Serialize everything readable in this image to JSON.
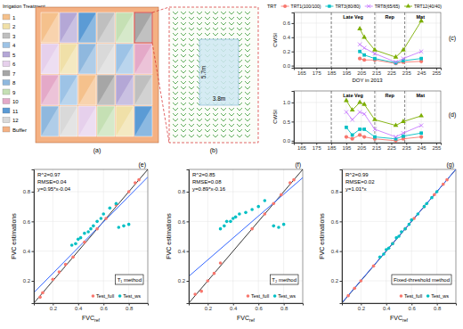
{
  "field_layout": {
    "label": "(a)",
    "legend_title": "Irrigation Treatment",
    "treatments": [
      {
        "name": "1",
        "color": "#f5c18c"
      },
      {
        "name": "2",
        "color": "#f0e0a8"
      },
      {
        "name": "3",
        "color": "#bfbfbf"
      },
      {
        "name": "4",
        "color": "#9dc3e6"
      },
      {
        "name": "5",
        "color": "#b4a7d6"
      },
      {
        "name": "6",
        "color": "#e6d0ec"
      },
      {
        "name": "7",
        "color": "#a6a6a6"
      },
      {
        "name": "8",
        "color": "#8fb8de"
      },
      {
        "name": "9",
        "color": "#c5e0b4"
      },
      {
        "name": "10",
        "color": "#e4a9c8"
      },
      {
        "name": "11",
        "color": "#5b9bd5"
      },
      {
        "name": "12",
        "color": "#d9d9d9"
      },
      {
        "name": "Buffer",
        "color": "#f4b183"
      }
    ],
    "plots": [
      [
        0,
        4,
        10,
        2,
        8,
        6
      ],
      [
        5,
        1,
        7,
        11,
        3,
        9
      ],
      [
        9,
        3,
        0,
        6,
        4,
        2
      ],
      [
        7,
        11,
        5,
        8,
        1,
        10
      ]
    ]
  },
  "plot_detail": {
    "label": "(b)",
    "length": "5.7m",
    "width": "3.8m"
  },
  "chart_data": [
    {
      "type": "line",
      "label": "(c)",
      "x_label": "DOY in 2013",
      "y_label": "CWSI",
      "legend": "top",
      "legend_title": "TRT",
      "grid": true,
      "x": [
        204,
        207,
        214,
        228,
        233,
        245
      ],
      "series": [
        {
          "name": "TRT1(100/100)",
          "color": "#F8766D",
          "marker": "circle",
          "values": [
            0.1,
            0.08,
            0.08,
            0.03,
            0.05,
            0.06
          ]
        },
        {
          "name": "TRT3(80/80)",
          "color": "#00BFC4",
          "marker": "square",
          "values": [
            0.2,
            0.15,
            0.1,
            0.04,
            0.07,
            0.1
          ]
        },
        {
          "name": "TRT8(65/65)",
          "color": "#C77CFF",
          "marker": "x",
          "values": [
            0.3,
            0.25,
            0.17,
            0.05,
            0.1,
            0.2
          ]
        },
        {
          "name": "TRT12(40/40)",
          "color": "#7CAE00",
          "marker": "triangle",
          "values": [
            0.52,
            0.4,
            0.22,
            0.12,
            0.22,
            0.63
          ]
        }
      ],
      "phases": [
        {
          "label": "Late Veg",
          "start": 185,
          "end": 214
        },
        {
          "label": "Rep",
          "start": 214,
          "end": 234
        },
        {
          "label": "Mat",
          "start": 234,
          "end": 255
        }
      ],
      "xlim": [
        160,
        258
      ],
      "xticks": [
        165,
        175,
        185,
        195,
        205,
        215,
        225,
        235,
        245,
        255
      ],
      "ylim": [
        -0.03,
        0.75
      ],
      "yticks": [
        {
          "value": 0,
          "label": "0.0"
        },
        0.2,
        0.4,
        0.6
      ]
    },
    {
      "type": "line",
      "label": "(d)",
      "y_label": "CWSI",
      "grid": true,
      "x": [
        195,
        199,
        204,
        207,
        214,
        228,
        233,
        245
      ],
      "series": [
        {
          "color": "#F8766D",
          "marker": "circle",
          "values": [
            0.1,
            0.05,
            0.15,
            0.1,
            0.05,
            0.0,
            0.05,
            0.1
          ]
        },
        {
          "color": "#00BFC4",
          "marker": "square",
          "values": [
            0.35,
            0.15,
            0.3,
            0.3,
            0.1,
            0.05,
            0.12,
            0.2
          ]
        },
        {
          "color": "#C77CFF",
          "marker": "x",
          "values": [
            0.75,
            0.55,
            0.75,
            0.7,
            0.3,
            0.1,
            0.2,
            0.4
          ]
        },
        {
          "color": "#7CAE00",
          "marker": "triangle",
          "values": [
            1.05,
            0.8,
            1.0,
            0.95,
            0.55,
            0.4,
            0.5,
            0.65
          ]
        }
      ],
      "phases": [
        {
          "label": "Late Veg",
          "start": 185,
          "end": 214
        },
        {
          "label": "Rep",
          "start": 214,
          "end": 234
        },
        {
          "label": "Mat",
          "start": 234,
          "end": 255
        }
      ],
      "xlim": [
        160,
        258
      ],
      "xticks": [
        165,
        175,
        185,
        195,
        205,
        215,
        225,
        235,
        245,
        255
      ],
      "ylim": [
        -0.05,
        1.3
      ],
      "yticks": [
        {
          "value": 0,
          "label": "0.0"
        },
        0.5,
        {
          "value": 1,
          "label": "1.0"
        }
      ]
    },
    {
      "type": "scatter",
      "label": "(e)",
      "x_label": "FVC",
      "x_label_sub": "ref",
      "y_label": "FVC estimations",
      "annotations": [
        "R^2=0.97",
        "RMSE=0.04",
        "y=0.95*x-0.04"
      ],
      "method_label": "T₁ method",
      "legend": "bottom-right",
      "grid": true,
      "series": [
        {
          "name": "Test_full",
          "color": "#F8766D",
          "x": [
            0.1,
            0.12,
            0.2,
            0.25,
            0.3,
            0.36,
            0.45,
            0.55,
            0.62,
            0.7,
            0.8,
            0.85,
            0.88
          ],
          "values": [
            0.09,
            0.12,
            0.21,
            0.26,
            0.31,
            0.36,
            0.46,
            0.55,
            0.62,
            0.71,
            0.8,
            0.86,
            0.88
          ]
        },
        {
          "name": "Test_ws",
          "color": "#00BFC4",
          "x": [
            0.35,
            0.38,
            0.4,
            0.42,
            0.45,
            0.48,
            0.5,
            0.52,
            0.55,
            0.58,
            0.6,
            0.65,
            0.7,
            0.72,
            0.76,
            0.8
          ],
          "values": [
            0.44,
            0.45,
            0.48,
            0.49,
            0.52,
            0.53,
            0.55,
            0.57,
            0.6,
            0.62,
            0.65,
            0.69,
            0.72,
            0.56,
            0.57,
            0.58
          ]
        }
      ],
      "xlim": [
        0.05,
        0.95
      ],
      "xticks": [
        0.2,
        0.4,
        0.6,
        0.8
      ],
      "ylim": [
        0.05,
        0.95
      ],
      "yticks": [
        0.2,
        0.4,
        0.6,
        0.8
      ]
    },
    {
      "type": "scatter",
      "label": "(f)",
      "x_label": "FVC",
      "x_label_sub": "ref",
      "y_label": "FVC estimations",
      "annotations": [
        "R^2=0.85",
        "RMSE=0.08",
        "y=0.89*x-0.16"
      ],
      "method_label": "T₂ method",
      "legend": "bottom-right",
      "grid": true,
      "series": [
        {
          "name": "Test_full",
          "color": "#F8766D",
          "x": [
            0.1,
            0.15,
            0.2,
            0.25,
            0.3,
            0.55,
            0.65,
            0.72,
            0.78,
            0.85,
            0.88
          ],
          "values": [
            0.11,
            0.13,
            0.2,
            0.25,
            0.32,
            0.55,
            0.65,
            0.72,
            0.78,
            0.86,
            0.88
          ]
        },
        {
          "name": "Test_ws",
          "color": "#00BFC4",
          "x": [
            0.3,
            0.33,
            0.35,
            0.38,
            0.4,
            0.42,
            0.45,
            0.5,
            0.55,
            0.6,
            0.65,
            0.72,
            0.76,
            0.8
          ],
          "values": [
            0.55,
            0.57,
            0.6,
            0.6,
            0.62,
            0.63,
            0.65,
            0.66,
            0.68,
            0.7,
            0.74,
            0.57,
            0.56,
            0.58
          ]
        }
      ],
      "xlim": [
        0.05,
        0.95
      ],
      "xticks": [
        0.2,
        0.4,
        0.6,
        0.8
      ],
      "ylim": [
        0.05,
        0.95
      ],
      "yticks": [
        0.2,
        0.4,
        0.6,
        0.8
      ]
    },
    {
      "type": "scatter",
      "label": "(g)",
      "x_label": "FVC",
      "x_label_sub": "ref",
      "y_label": "FVC estimations",
      "annotations": [
        "R^2=0.99",
        "RMSE=0.02",
        "y=1.01*x"
      ],
      "method_label": "Fixed-threshold method",
      "legend": "bottom-right",
      "grid": true,
      "series": [
        {
          "name": "Test_full",
          "color": "#F8766D",
          "x": [
            0.1,
            0.15,
            0.2,
            0.3,
            0.45,
            0.55,
            0.62,
            0.7,
            0.78,
            0.85,
            0.88
          ],
          "values": [
            0.1,
            0.15,
            0.2,
            0.3,
            0.45,
            0.55,
            0.62,
            0.7,
            0.78,
            0.85,
            0.88
          ]
        },
        {
          "name": "Test_ws",
          "color": "#00BFC4",
          "x": [
            0.35,
            0.38,
            0.4,
            0.42,
            0.45,
            0.48,
            0.5,
            0.52,
            0.55,
            0.58,
            0.6,
            0.65,
            0.7,
            0.72,
            0.76,
            0.8
          ],
          "values": [
            0.36,
            0.38,
            0.41,
            0.42,
            0.45,
            0.49,
            0.5,
            0.53,
            0.55,
            0.58,
            0.61,
            0.65,
            0.7,
            0.72,
            0.76,
            0.8
          ]
        }
      ],
      "xlim": [
        0.05,
        0.95
      ],
      "xticks": [
        0.2,
        0.4,
        0.6,
        0.8
      ],
      "ylim": [
        0.05,
        0.95
      ],
      "yticks": [
        0.2,
        0.4,
        0.6,
        0.8
      ]
    }
  ]
}
